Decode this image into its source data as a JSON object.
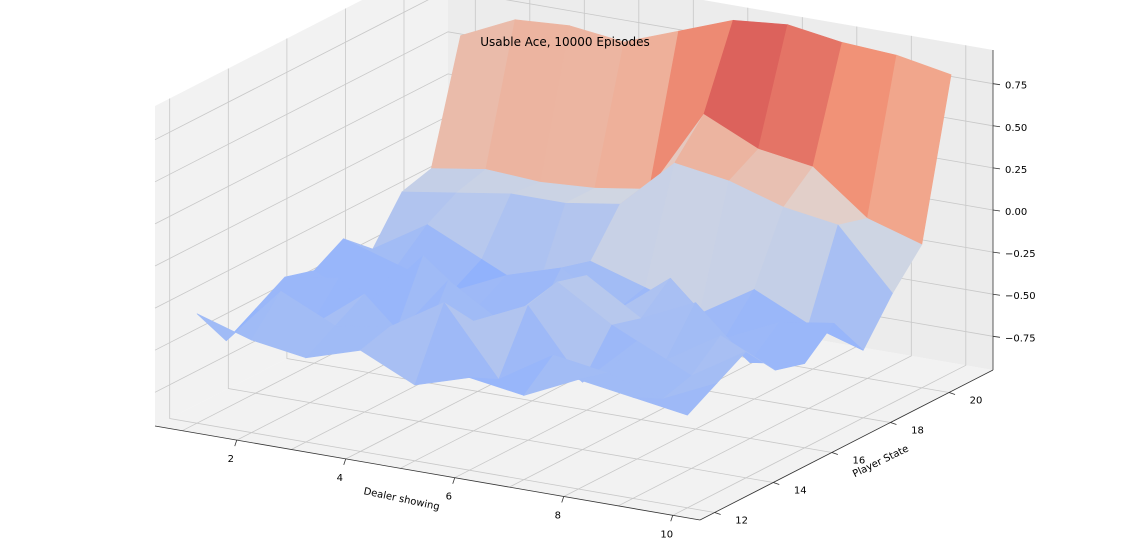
{
  "chart_data": {
    "type": "surface",
    "title": "Usable Ace, 10000 Episodes",
    "xlabel": "Dealer showing",
    "ylabel": "Player State",
    "zlabel": "",
    "colormap": "coolwarm",
    "x": [
      1,
      2,
      3,
      4,
      5,
      6,
      7,
      8,
      9,
      10
    ],
    "y": [
      12,
      13,
      14,
      15,
      16,
      17,
      18,
      19,
      20,
      21
    ],
    "xlim": [
      0.5,
      10.5
    ],
    "ylim": [
      11.5,
      21.5
    ],
    "zlim": [
      -0.95,
      0.95
    ],
    "x_ticks": [
      2,
      4,
      6,
      8,
      10
    ],
    "y_ticks": [
      12,
      14,
      16,
      18,
      20
    ],
    "z_ticks": [
      0.75,
      0.5,
      0.25,
      0.0,
      -0.25,
      -0.5,
      -0.75
    ],
    "z_tick_labels": [
      "0.75",
      "0.50",
      "0.25",
      "0.00",
      "−0.25",
      "−0.50",
      "−0.75"
    ],
    "grid": true,
    "z": [
      [
        -0.3,
        -0.4,
        -0.45,
        -0.35,
        -0.5,
        -0.4,
        -0.45,
        -0.3,
        -0.35,
        -0.4
      ],
      [
        -0.55,
        -0.2,
        -0.35,
        -0.3,
        -0.1,
        -0.5,
        -0.3,
        -0.35,
        -0.45,
        -0.3
      ],
      [
        -0.45,
        -0.5,
        -0.25,
        -0.55,
        -0.3,
        -0.15,
        -0.55,
        -0.25,
        -0.4,
        -0.2
      ],
      [
        -0.35,
        -0.3,
        -0.6,
        -0.2,
        -0.4,
        -0.1,
        -0.3,
        -0.45,
        -0.25,
        -0.4
      ],
      [
        -0.4,
        -0.55,
        -0.2,
        -0.45,
        -0.5,
        -0.15,
        -0.35,
        -0.2,
        -0.5,
        -0.45
      ],
      [
        -0.3,
        -0.4,
        -0.5,
        -0.35,
        -0.25,
        -0.45,
        -0.2,
        -0.5,
        -0.35,
        -0.3
      ],
      [
        -0.45,
        -0.25,
        -0.4,
        -0.55,
        -0.3,
        -0.4,
        -0.5,
        -0.3,
        -0.45,
        -0.55
      ],
      [
        -0.2,
        -0.15,
        -0.1,
        -0.1,
        -0.05,
        0.25,
        0.2,
        0.1,
        0.05,
        -0.3
      ],
      [
        -0.15,
        -0.1,
        -0.12,
        -0.1,
        -0.05,
        0.45,
        0.3,
        0.25,
        0.0,
        -0.1
      ],
      [
        0.55,
        0.7,
        0.72,
        0.68,
        0.8,
        0.92,
        0.95,
        0.9,
        0.88,
        0.82
      ]
    ]
  }
}
